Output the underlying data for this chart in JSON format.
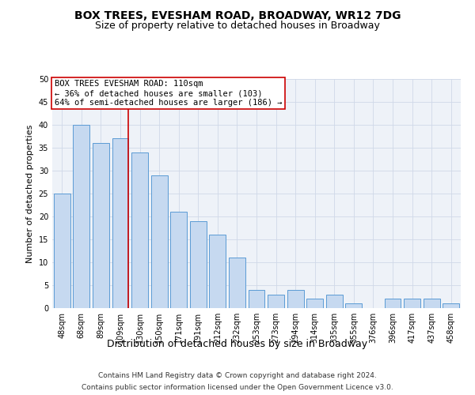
{
  "title": "BOX TREES, EVESHAM ROAD, BROADWAY, WR12 7DG",
  "subtitle": "Size of property relative to detached houses in Broadway",
  "xlabel": "Distribution of detached houses by size in Broadway",
  "ylabel": "Number of detached properties",
  "categories": [
    "48sqm",
    "68sqm",
    "89sqm",
    "109sqm",
    "130sqm",
    "150sqm",
    "171sqm",
    "191sqm",
    "212sqm",
    "232sqm",
    "253sqm",
    "273sqm",
    "294sqm",
    "314sqm",
    "335sqm",
    "355sqm",
    "376sqm",
    "396sqm",
    "417sqm",
    "437sqm",
    "458sqm"
  ],
  "values": [
    25,
    40,
    36,
    37,
    34,
    29,
    21,
    19,
    16,
    11,
    4,
    3,
    4,
    2,
    3,
    1,
    0,
    2,
    2,
    2,
    1
  ],
  "bar_color": "#c6d9f0",
  "bar_edgecolor": "#5b9bd5",
  "redline_index": 3,
  "redline_label": "BOX TREES EVESHAM ROAD: 110sqm",
  "annotation_line1": "← 36% of detached houses are smaller (103)",
  "annotation_line2": "64% of semi-detached houses are larger (186) →",
  "annotation_box_color": "#ffffff",
  "annotation_box_edgecolor": "#cc0000",
  "redline_color": "#cc0000",
  "ylim": [
    0,
    50
  ],
  "yticks": [
    0,
    5,
    10,
    15,
    20,
    25,
    30,
    35,
    40,
    45,
    50
  ],
  "grid_color": "#d0d8e8",
  "background_color": "#eef2f8",
  "footer_line1": "Contains HM Land Registry data © Crown copyright and database right 2024.",
  "footer_line2": "Contains public sector information licensed under the Open Government Licence v3.0.",
  "title_fontsize": 10,
  "subtitle_fontsize": 9,
  "xlabel_fontsize": 9,
  "ylabel_fontsize": 8,
  "tick_fontsize": 7,
  "annotation_fontsize": 7.5,
  "footer_fontsize": 6.5
}
